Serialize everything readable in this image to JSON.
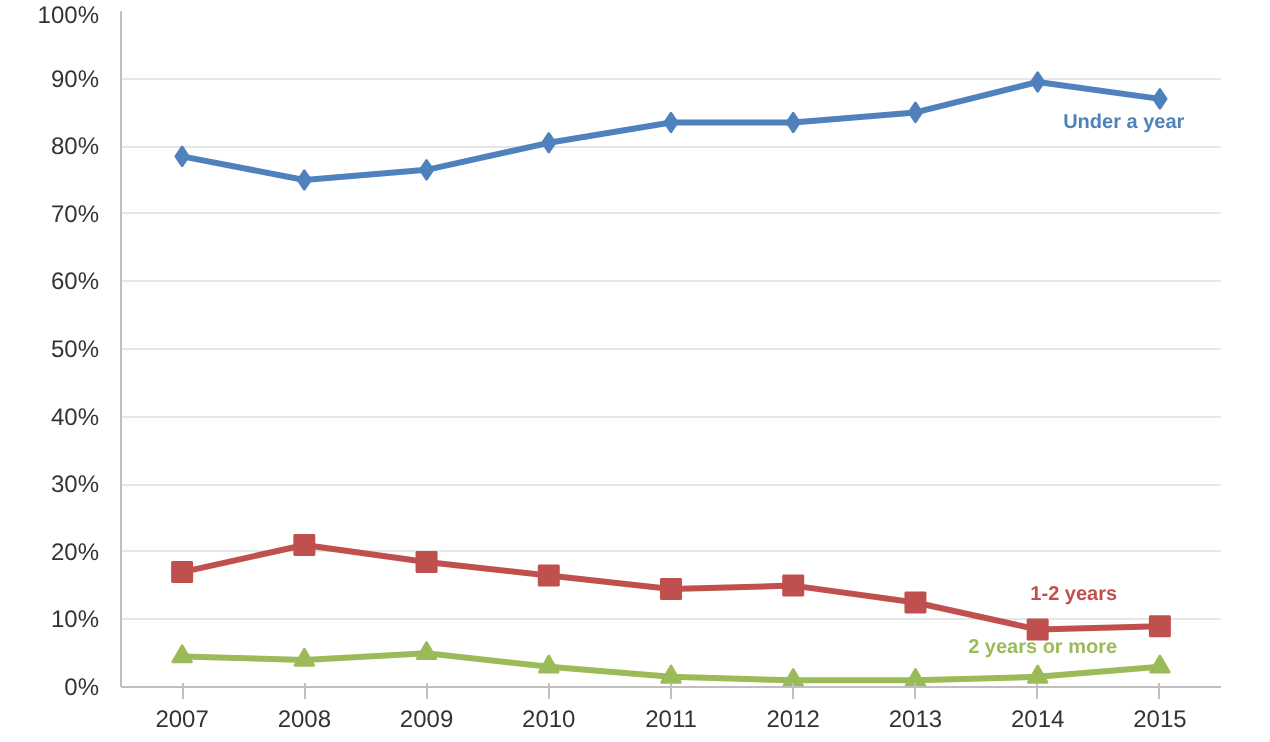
{
  "chart_data": {
    "type": "line",
    "categories": [
      "2007",
      "2008",
      "2009",
      "2010",
      "2011",
      "2012",
      "2013",
      "2014",
      "2015"
    ],
    "series": [
      {
        "name": "Under a year",
        "color": "#4f81bd",
        "marker": "diamond",
        "values": [
          78.5,
          75,
          76.5,
          80.5,
          83.5,
          83.5,
          85,
          89.5,
          87
        ]
      },
      {
        "name": "1-2 years",
        "color": "#c0504d",
        "marker": "square",
        "values": [
          17,
          21,
          18.5,
          16.5,
          14.5,
          15,
          12.5,
          8.5,
          9
        ]
      },
      {
        "name": "2 years or more",
        "color": "#9bbb59",
        "marker": "triangle",
        "values": [
          4.5,
          4,
          5,
          3,
          1.5,
          1,
          1,
          1.5,
          3
        ]
      }
    ],
    "ylim": [
      0,
      100
    ],
    "yticks": [
      {
        "value": 0,
        "label": "0%"
      },
      {
        "value": 10,
        "label": "10%"
      },
      {
        "value": 20,
        "label": "20%"
      },
      {
        "value": 30,
        "label": "30%"
      },
      {
        "value": 40,
        "label": "40%"
      },
      {
        "value": 50,
        "label": "50%"
      },
      {
        "value": 60,
        "label": "60%"
      },
      {
        "value": 70,
        "label": "70%"
      },
      {
        "value": 80,
        "label": "80%"
      },
      {
        "value": 90,
        "label": "90%"
      },
      {
        "value": 100,
        "label": "100%"
      }
    ],
    "grid": "y",
    "legend": false
  }
}
